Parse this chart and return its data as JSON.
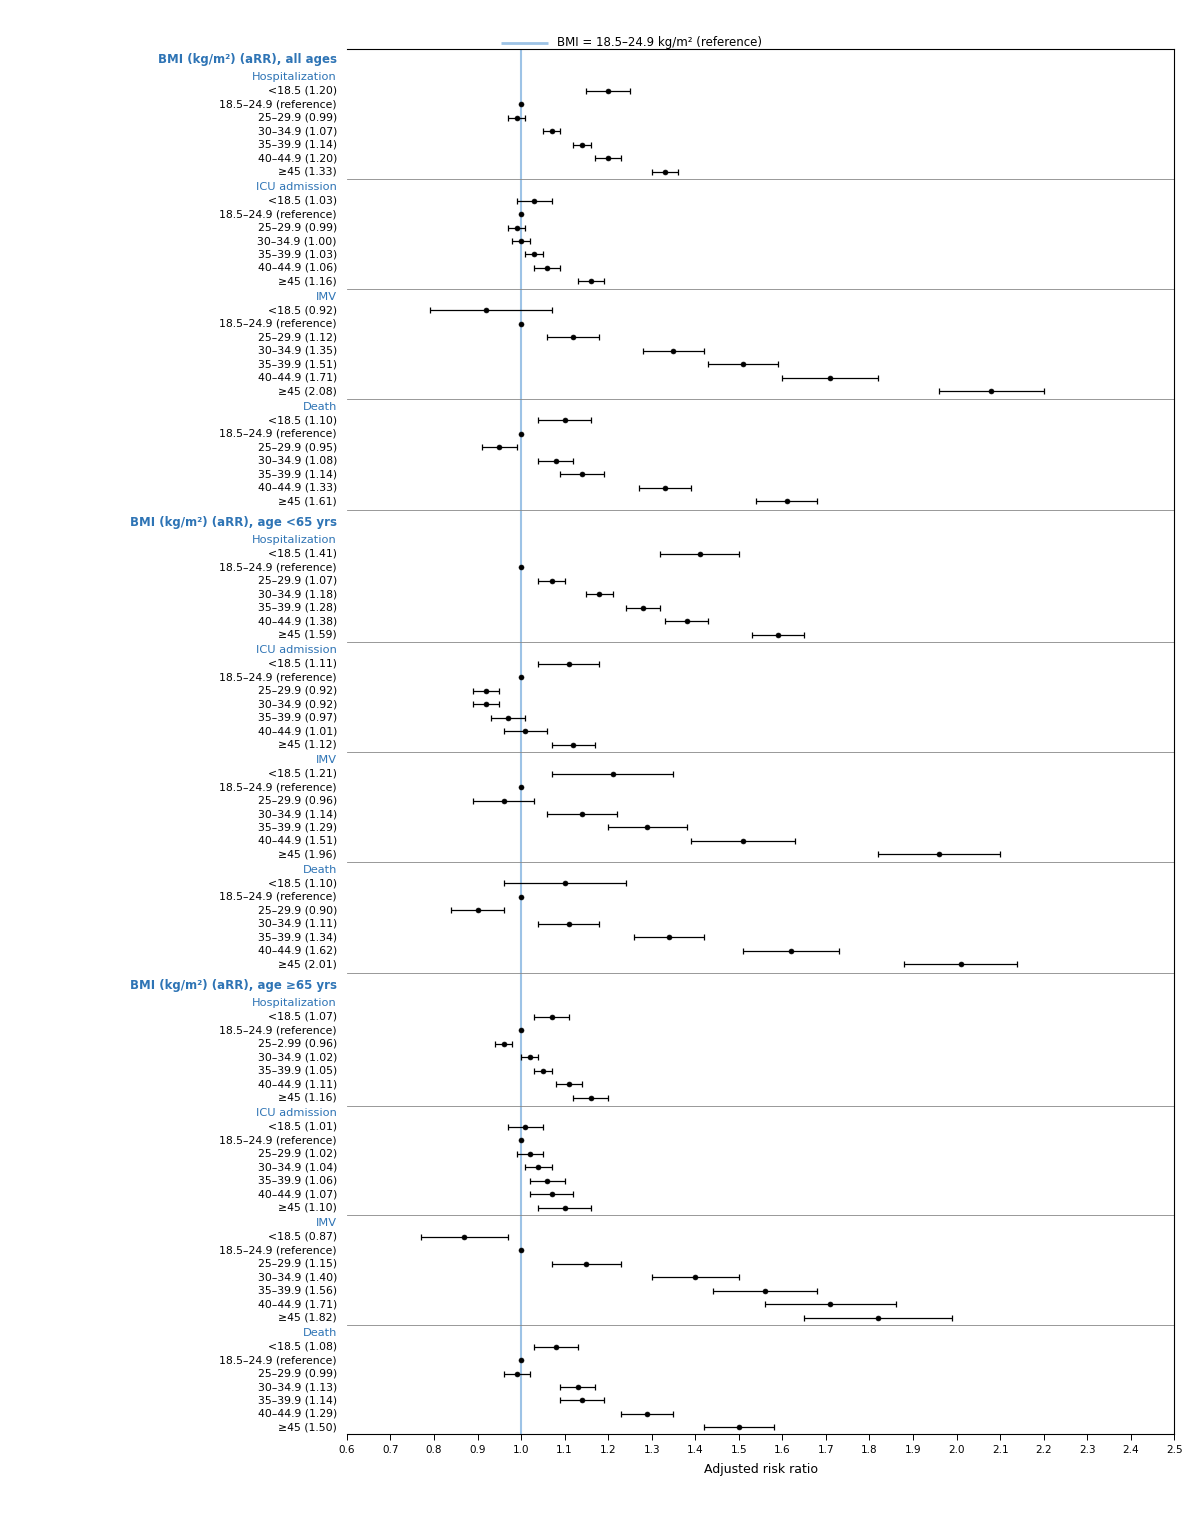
{
  "title_legend": "BMI = 18.5–24.9 kg/m² (reference)",
  "xlabel": "Adjusted risk ratio",
  "xmin": 0.6,
  "xmax": 2.5,
  "xtick_labels": [
    "0.6",
    "0.7",
    "0.8",
    "0.9",
    "1.0",
    "1.1",
    "1.2",
    "1.3",
    "1.4",
    "1.5",
    "1.6",
    "1.7",
    "1.8",
    "1.9",
    "2.0",
    "2.1",
    "2.2",
    "2.3",
    "2.4",
    "2.5"
  ],
  "xtick_vals": [
    0.6,
    0.7,
    0.8,
    0.9,
    1.0,
    1.1,
    1.2,
    1.3,
    1.4,
    1.5,
    1.6,
    1.7,
    1.8,
    1.9,
    2.0,
    2.1,
    2.2,
    2.3,
    2.4,
    2.5
  ],
  "reference_line": 1.0,
  "blue_color": "#2E74B5",
  "ref_line_color": "#9DC3E6",
  "groups": [
    {
      "group_label": "BMI (kg/m²) (aRR), all ages",
      "subgroups": [
        {
          "subgroup_label": "Hospitalization",
          "rows": [
            {
              "label": "<18.5 (1.20)",
              "est": 1.2,
              "lo": 1.15,
              "hi": 1.25,
              "ref": false
            },
            {
              "label": "18.5–24.9 (reference)",
              "est": 1.0,
              "lo": 1.0,
              "hi": 1.0,
              "ref": true
            },
            {
              "label": "25–29.9 (0.99)",
              "est": 0.99,
              "lo": 0.97,
              "hi": 1.01,
              "ref": false
            },
            {
              "label": "30–34.9 (1.07)",
              "est": 1.07,
              "lo": 1.05,
              "hi": 1.09,
              "ref": false
            },
            {
              "label": "35–39.9 (1.14)",
              "est": 1.14,
              "lo": 1.12,
              "hi": 1.16,
              "ref": false
            },
            {
              "label": "40–44.9 (1.20)",
              "est": 1.2,
              "lo": 1.17,
              "hi": 1.23,
              "ref": false
            },
            {
              "label": "≥45 (1.33)",
              "est": 1.33,
              "lo": 1.3,
              "hi": 1.36,
              "ref": false
            }
          ]
        },
        {
          "subgroup_label": "ICU admission",
          "rows": [
            {
              "label": "<18.5 (1.03)",
              "est": 1.03,
              "lo": 0.99,
              "hi": 1.07,
              "ref": false
            },
            {
              "label": "18.5–24.9 (reference)",
              "est": 1.0,
              "lo": 1.0,
              "hi": 1.0,
              "ref": true
            },
            {
              "label": "25–29.9 (0.99)",
              "est": 0.99,
              "lo": 0.97,
              "hi": 1.01,
              "ref": false
            },
            {
              "label": "30–34.9 (1.00)",
              "est": 1.0,
              "lo": 0.98,
              "hi": 1.02,
              "ref": false
            },
            {
              "label": "35–39.9 (1.03)",
              "est": 1.03,
              "lo": 1.01,
              "hi": 1.05,
              "ref": false
            },
            {
              "label": "40–44.9 (1.06)",
              "est": 1.06,
              "lo": 1.03,
              "hi": 1.09,
              "ref": false
            },
            {
              "label": "≥45 (1.16)",
              "est": 1.16,
              "lo": 1.13,
              "hi": 1.19,
              "ref": false
            }
          ]
        },
        {
          "subgroup_label": "IMV",
          "rows": [
            {
              "label": "<18.5 (0.92)",
              "est": 0.92,
              "lo": 0.79,
              "hi": 1.07,
              "ref": false
            },
            {
              "label": "18.5–24.9 (reference)",
              "est": 1.0,
              "lo": 1.0,
              "hi": 1.0,
              "ref": true
            },
            {
              "label": "25–29.9 (1.12)",
              "est": 1.12,
              "lo": 1.06,
              "hi": 1.18,
              "ref": false
            },
            {
              "label": "30–34.9 (1.35)",
              "est": 1.35,
              "lo": 1.28,
              "hi": 1.42,
              "ref": false
            },
            {
              "label": "35–39.9 (1.51)",
              "est": 1.51,
              "lo": 1.43,
              "hi": 1.59,
              "ref": false
            },
            {
              "label": "40–44.9 (1.71)",
              "est": 1.71,
              "lo": 1.6,
              "hi": 1.82,
              "ref": false
            },
            {
              "label": "≥45 (2.08)",
              "est": 2.08,
              "lo": 1.96,
              "hi": 2.2,
              "ref": false
            }
          ]
        },
        {
          "subgroup_label": "Death",
          "rows": [
            {
              "label": "<18.5 (1.10)",
              "est": 1.1,
              "lo": 1.04,
              "hi": 1.16,
              "ref": false
            },
            {
              "label": "18.5–24.9 (reference)",
              "est": 1.0,
              "lo": 1.0,
              "hi": 1.0,
              "ref": true
            },
            {
              "label": "25–29.9 (0.95)",
              "est": 0.95,
              "lo": 0.91,
              "hi": 0.99,
              "ref": false
            },
            {
              "label": "30–34.9 (1.08)",
              "est": 1.08,
              "lo": 1.04,
              "hi": 1.12,
              "ref": false
            },
            {
              "label": "35–39.9 (1.14)",
              "est": 1.14,
              "lo": 1.09,
              "hi": 1.19,
              "ref": false
            },
            {
              "label": "40–44.9 (1.33)",
              "est": 1.33,
              "lo": 1.27,
              "hi": 1.39,
              "ref": false
            },
            {
              "label": "≥45 (1.61)",
              "est": 1.61,
              "lo": 1.54,
              "hi": 1.68,
              "ref": false
            }
          ]
        }
      ]
    },
    {
      "group_label": "BMI (kg/m²) (aRR), age <65 yrs",
      "subgroups": [
        {
          "subgroup_label": "Hospitalization",
          "rows": [
            {
              "label": "<18.5 (1.41)",
              "est": 1.41,
              "lo": 1.32,
              "hi": 1.5,
              "ref": false
            },
            {
              "label": "18.5–24.9 (reference)",
              "est": 1.0,
              "lo": 1.0,
              "hi": 1.0,
              "ref": true
            },
            {
              "label": "25–29.9 (1.07)",
              "est": 1.07,
              "lo": 1.04,
              "hi": 1.1,
              "ref": false
            },
            {
              "label": "30–34.9 (1.18)",
              "est": 1.18,
              "lo": 1.15,
              "hi": 1.21,
              "ref": false
            },
            {
              "label": "35–39.9 (1.28)",
              "est": 1.28,
              "lo": 1.24,
              "hi": 1.32,
              "ref": false
            },
            {
              "label": "40–44.9 (1.38)",
              "est": 1.38,
              "lo": 1.33,
              "hi": 1.43,
              "ref": false
            },
            {
              "label": "≥45 (1.59)",
              "est": 1.59,
              "lo": 1.53,
              "hi": 1.65,
              "ref": false
            }
          ]
        },
        {
          "subgroup_label": "ICU admission",
          "rows": [
            {
              "label": "<18.5 (1.11)",
              "est": 1.11,
              "lo": 1.04,
              "hi": 1.18,
              "ref": false
            },
            {
              "label": "18.5–24.9 (reference)",
              "est": 1.0,
              "lo": 1.0,
              "hi": 1.0,
              "ref": true
            },
            {
              "label": "25–29.9 (0.92)",
              "est": 0.92,
              "lo": 0.89,
              "hi": 0.95,
              "ref": false
            },
            {
              "label": "30–34.9 (0.92)",
              "est": 0.92,
              "lo": 0.89,
              "hi": 0.95,
              "ref": false
            },
            {
              "label": "35–39.9 (0.97)",
              "est": 0.97,
              "lo": 0.93,
              "hi": 1.01,
              "ref": false
            },
            {
              "label": "40–44.9 (1.01)",
              "est": 1.01,
              "lo": 0.96,
              "hi": 1.06,
              "ref": false
            },
            {
              "label": "≥45 (1.12)",
              "est": 1.12,
              "lo": 1.07,
              "hi": 1.17,
              "ref": false
            }
          ]
        },
        {
          "subgroup_label": "IMV",
          "rows": [
            {
              "label": "<18.5 (1.21)",
              "est": 1.21,
              "lo": 1.07,
              "hi": 1.35,
              "ref": false
            },
            {
              "label": "18.5–24.9 (reference)",
              "est": 1.0,
              "lo": 1.0,
              "hi": 1.0,
              "ref": true
            },
            {
              "label": "25–29.9 (0.96)",
              "est": 0.96,
              "lo": 0.89,
              "hi": 1.03,
              "ref": false
            },
            {
              "label": "30–34.9 (1.14)",
              "est": 1.14,
              "lo": 1.06,
              "hi": 1.22,
              "ref": false
            },
            {
              "label": "35–39.9 (1.29)",
              "est": 1.29,
              "lo": 1.2,
              "hi": 1.38,
              "ref": false
            },
            {
              "label": "40–44.9 (1.51)",
              "est": 1.51,
              "lo": 1.39,
              "hi": 1.63,
              "ref": false
            },
            {
              "label": "≥45 (1.96)",
              "est": 1.96,
              "lo": 1.82,
              "hi": 2.1,
              "ref": false
            }
          ]
        },
        {
          "subgroup_label": "Death",
          "rows": [
            {
              "label": "<18.5 (1.10)",
              "est": 1.1,
              "lo": 0.96,
              "hi": 1.24,
              "ref": false
            },
            {
              "label": "18.5–24.9 (reference)",
              "est": 1.0,
              "lo": 1.0,
              "hi": 1.0,
              "ref": true
            },
            {
              "label": "25–29.9 (0.90)",
              "est": 0.9,
              "lo": 0.84,
              "hi": 0.96,
              "ref": false
            },
            {
              "label": "30–34.9 (1.11)",
              "est": 1.11,
              "lo": 1.04,
              "hi": 1.18,
              "ref": false
            },
            {
              "label": "35–39.9 (1.34)",
              "est": 1.34,
              "lo": 1.26,
              "hi": 1.42,
              "ref": false
            },
            {
              "label": "40–44.9 (1.62)",
              "est": 1.62,
              "lo": 1.51,
              "hi": 1.73,
              "ref": false
            },
            {
              "label": "≥45 (2.01)",
              "est": 2.01,
              "lo": 1.88,
              "hi": 2.14,
              "ref": false
            }
          ]
        }
      ]
    },
    {
      "group_label": "BMI (kg/m²) (aRR), age ≥65 yrs",
      "subgroups": [
        {
          "subgroup_label": "Hospitalization",
          "rows": [
            {
              "label": "<18.5 (1.07)",
              "est": 1.07,
              "lo": 1.03,
              "hi": 1.11,
              "ref": false
            },
            {
              "label": "18.5–24.9 (reference)",
              "est": 1.0,
              "lo": 1.0,
              "hi": 1.0,
              "ref": true
            },
            {
              "label": "25–2.99 (0.96)",
              "est": 0.96,
              "lo": 0.94,
              "hi": 0.98,
              "ref": false
            },
            {
              "label": "30–34.9 (1.02)",
              "est": 1.02,
              "lo": 1.0,
              "hi": 1.04,
              "ref": false
            },
            {
              "label": "35–39.9 (1.05)",
              "est": 1.05,
              "lo": 1.03,
              "hi": 1.07,
              "ref": false
            },
            {
              "label": "40–44.9 (1.11)",
              "est": 1.11,
              "lo": 1.08,
              "hi": 1.14,
              "ref": false
            },
            {
              "label": "≥45 (1.16)",
              "est": 1.16,
              "lo": 1.12,
              "hi": 1.2,
              "ref": false
            }
          ]
        },
        {
          "subgroup_label": "ICU admission",
          "rows": [
            {
              "label": "<18.5 (1.01)",
              "est": 1.01,
              "lo": 0.97,
              "hi": 1.05,
              "ref": false
            },
            {
              "label": "18.5–24.9 (reference)",
              "est": 1.0,
              "lo": 1.0,
              "hi": 1.0,
              "ref": true
            },
            {
              "label": "25–29.9 (1.02)",
              "est": 1.02,
              "lo": 0.99,
              "hi": 1.05,
              "ref": false
            },
            {
              "label": "30–34.9 (1.04)",
              "est": 1.04,
              "lo": 1.01,
              "hi": 1.07,
              "ref": false
            },
            {
              "label": "35–39.9 (1.06)",
              "est": 1.06,
              "lo": 1.02,
              "hi": 1.1,
              "ref": false
            },
            {
              "label": "40–44.9 (1.07)",
              "est": 1.07,
              "lo": 1.02,
              "hi": 1.12,
              "ref": false
            },
            {
              "label": "≥45 (1.10)",
              "est": 1.1,
              "lo": 1.04,
              "hi": 1.16,
              "ref": false
            }
          ]
        },
        {
          "subgroup_label": "IMV",
          "rows": [
            {
              "label": "<18.5 (0.87)",
              "est": 0.87,
              "lo": 0.77,
              "hi": 0.97,
              "ref": false
            },
            {
              "label": "18.5–24.9 (reference)",
              "est": 1.0,
              "lo": 1.0,
              "hi": 1.0,
              "ref": true
            },
            {
              "label": "25–29.9 (1.15)",
              "est": 1.15,
              "lo": 1.07,
              "hi": 1.23,
              "ref": false
            },
            {
              "label": "30–34.9 (1.40)",
              "est": 1.4,
              "lo": 1.3,
              "hi": 1.5,
              "ref": false
            },
            {
              "label": "35–39.9 (1.56)",
              "est": 1.56,
              "lo": 1.44,
              "hi": 1.68,
              "ref": false
            },
            {
              "label": "40–44.9 (1.71)",
              "est": 1.71,
              "lo": 1.56,
              "hi": 1.86,
              "ref": false
            },
            {
              "label": "≥45 (1.82)",
              "est": 1.82,
              "lo": 1.65,
              "hi": 1.99,
              "ref": false
            }
          ]
        },
        {
          "subgroup_label": "Death",
          "rows": [
            {
              "label": "<18.5 (1.08)",
              "est": 1.08,
              "lo": 1.03,
              "hi": 1.13,
              "ref": false
            },
            {
              "label": "18.5–24.9 (reference)",
              "est": 1.0,
              "lo": 1.0,
              "hi": 1.0,
              "ref": true
            },
            {
              "label": "25–29.9 (0.99)",
              "est": 0.99,
              "lo": 0.96,
              "hi": 1.02,
              "ref": false
            },
            {
              "label": "30–34.9 (1.13)",
              "est": 1.13,
              "lo": 1.09,
              "hi": 1.17,
              "ref": false
            },
            {
              "label": "35–39.9 (1.14)",
              "est": 1.14,
              "lo": 1.09,
              "hi": 1.19,
              "ref": false
            },
            {
              "label": "40–44.9 (1.29)",
              "est": 1.29,
              "lo": 1.23,
              "hi": 1.35,
              "ref": false
            },
            {
              "label": "≥45 (1.50)",
              "est": 1.5,
              "lo": 1.42,
              "hi": 1.58,
              "ref": false
            }
          ]
        }
      ]
    }
  ]
}
